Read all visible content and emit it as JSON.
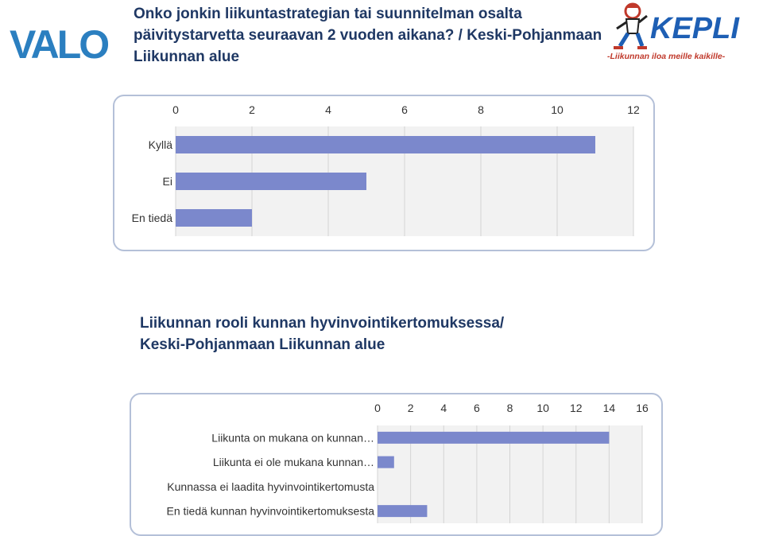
{
  "header": {
    "title_line1": "Onko jonkin liikuntastrategian tai suunnitelman osalta",
    "title_line2": "päivitystarvetta seuraavan 2 vuoden aikana? / Keski-Pohjanmaan",
    "title_line3": "Liikunnan alue"
  },
  "logos": {
    "valo": "VALO",
    "kepli": "KEPLI",
    "kepli_slogan": "-Liikunnan iloa meille kaikille-",
    "kepli_color": "#1e5fb4",
    "valo_color": "#2b7fc0"
  },
  "section2": {
    "title_line1": "Liikunnan rooli kunnan hyvinvointikertomuksessa/",
    "title_line2": "Keski-Pohjanmaan Liikunnan alue"
  },
  "colors": {
    "bar": "#7b88cc",
    "plot_bg": "#f2f2f2",
    "grid": "#d4d4d4",
    "title": "#1f3864"
  },
  "chart_data": [
    {
      "type": "bar",
      "orientation": "horizontal",
      "categories": [
        "Kyllä",
        "Ei",
        "En tiedä"
      ],
      "values": [
        11,
        5,
        2
      ],
      "xlim": [
        0,
        12
      ],
      "xticks": [
        "0",
        "2",
        "4",
        "6",
        "8",
        "10",
        "12"
      ],
      "axis_position": "top",
      "grid": true
    },
    {
      "type": "bar",
      "orientation": "horizontal",
      "categories": [
        "Liikunta on mukana on kunnan…",
        "Liikunta ei ole mukana kunnan…",
        "Kunnassa ei laadita hyvinvointikertomusta",
        "En tiedä kunnan hyvinvointikertomuksesta"
      ],
      "values": [
        14,
        1,
        0,
        3
      ],
      "xlim": [
        0,
        16
      ],
      "xticks": [
        "0",
        "2",
        "4",
        "6",
        "8",
        "10",
        "12",
        "14",
        "16"
      ],
      "axis_position": "top",
      "grid": true
    }
  ]
}
